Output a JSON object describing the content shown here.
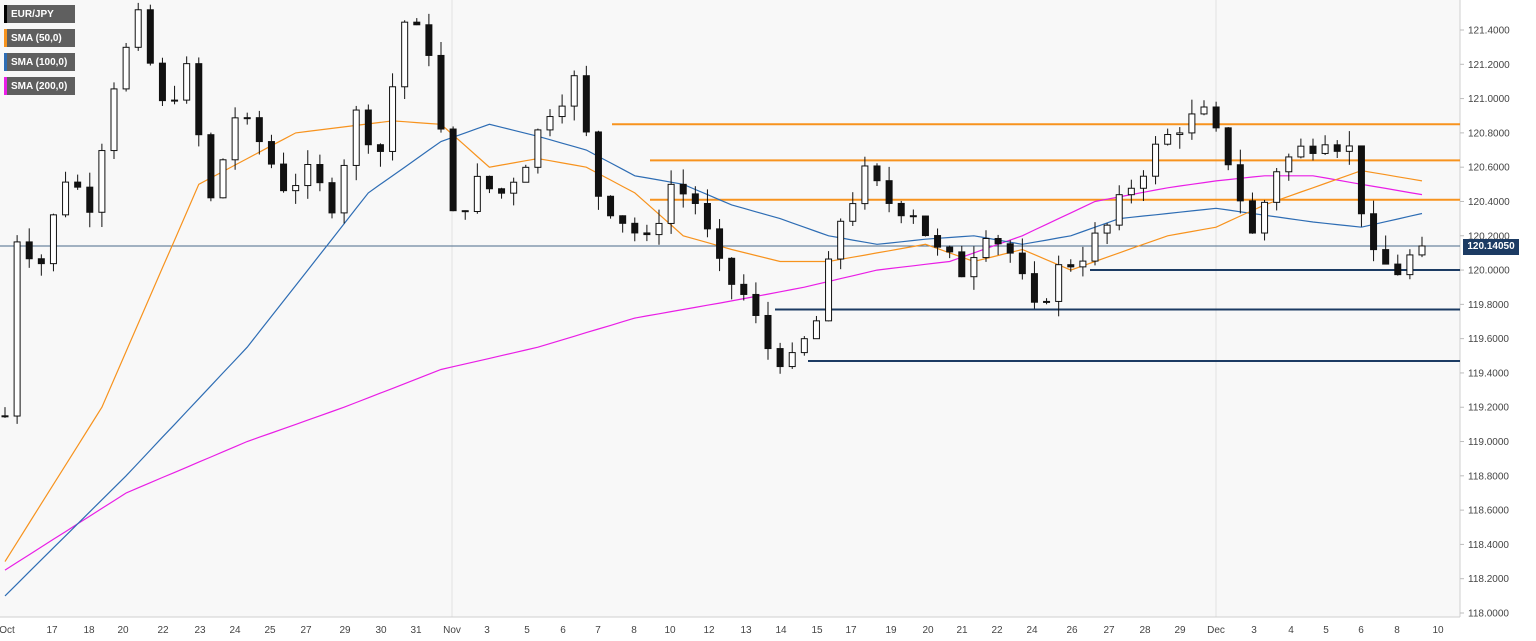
{
  "chart_data": {
    "type": "candlestick",
    "symbol": "EUR/JPY",
    "last_price": "120.14050",
    "ylim": [
      117.95,
      121.56
    ],
    "y_ticks": [
      "121.4000",
      "121.2000",
      "121.0000",
      "120.8000",
      "120.6000",
      "120.4000",
      "120.2000",
      "120.0000",
      "119.8000",
      "119.6000",
      "119.4000",
      "119.2000",
      "119.0000",
      "118.8000",
      "118.6000",
      "118.4000",
      "118.2000",
      "118.0000"
    ],
    "x_ticks": [
      "Oct",
      "17",
      "18",
      "20",
      "22",
      "23",
      "24",
      "25",
      "27",
      "29",
      "30",
      "31",
      "Nov",
      "3",
      "5",
      "6",
      "7",
      "8",
      "10",
      "12",
      "13",
      "14",
      "15",
      "17",
      "19",
      "20",
      "21",
      "22",
      "24",
      "26",
      "27",
      "28",
      "29",
      "Dec",
      "3",
      "4",
      "5",
      "6",
      "8",
      "10"
    ],
    "legend": [
      "EUR/JPY",
      "SMA (50,0)",
      "SMA (100,0)",
      "SMA (200,0)"
    ],
    "resistance_levels": [
      120.85,
      120.64,
      120.41
    ],
    "support_levels": [
      120.0,
      119.77,
      119.47
    ],
    "price_path": [
      [
        0,
        119.15
      ],
      [
        1,
        120.2
      ],
      [
        3,
        120.05
      ],
      [
        5,
        120.55
      ],
      [
        7,
        120.4
      ],
      [
        9,
        121.1
      ],
      [
        11,
        121.45
      ],
      [
        13,
        120.95
      ],
      [
        15,
        121.15
      ],
      [
        17,
        120.4
      ],
      [
        19,
        120.9
      ],
      [
        21,
        120.75
      ],
      [
        23,
        120.5
      ],
      [
        25,
        120.55
      ],
      [
        27,
        120.4
      ],
      [
        29,
        120.9
      ],
      [
        31,
        120.7
      ],
      [
        33,
        121.45
      ],
      [
        35,
        121.3
      ],
      [
        37,
        120.3
      ],
      [
        39,
        120.5
      ],
      [
        41,
        120.45
      ],
      [
        43,
        120.65
      ],
      [
        45,
        120.95
      ],
      [
        47,
        121.1
      ],
      [
        49,
        120.45
      ],
      [
        51,
        120.3
      ],
      [
        53,
        120.15
      ],
      [
        55,
        120.5
      ],
      [
        57,
        120.4
      ],
      [
        59,
        120.0
      ],
      [
        61,
        119.85
      ],
      [
        63,
        119.55
      ],
      [
        65,
        119.45
      ],
      [
        67,
        119.7
      ],
      [
        69,
        120.3
      ],
      [
        71,
        120.55
      ],
      [
        73,
        120.4
      ],
      [
        75,
        120.35
      ],
      [
        77,
        120.1
      ],
      [
        79,
        120.0
      ],
      [
        81,
        120.25
      ],
      [
        83,
        120.1
      ],
      [
        85,
        119.75
      ],
      [
        87,
        120.0
      ],
      [
        89,
        120.1
      ],
      [
        91,
        120.25
      ],
      [
        93,
        120.5
      ],
      [
        95,
        120.7
      ],
      [
        97,
        120.85
      ],
      [
        99,
        120.9
      ],
      [
        101,
        120.65
      ],
      [
        103,
        120.2
      ],
      [
        105,
        120.6
      ],
      [
        107,
        120.7
      ],
      [
        109,
        120.8
      ],
      [
        111,
        120.7
      ],
      [
        113,
        120.05
      ],
      [
        115,
        120.0
      ],
      [
        117,
        120.14
      ]
    ],
    "sma50": [
      [
        0,
        118.3
      ],
      [
        8,
        119.2
      ],
      [
        16,
        120.5
      ],
      [
        24,
        120.8
      ],
      [
        32,
        120.87
      ],
      [
        36,
        120.85
      ],
      [
        40,
        120.6
      ],
      [
        44,
        120.65
      ],
      [
        48,
        120.6
      ],
      [
        52,
        120.45
      ],
      [
        56,
        120.2
      ],
      [
        60,
        120.12
      ],
      [
        64,
        120.05
      ],
      [
        68,
        120.05
      ],
      [
        72,
        120.1
      ],
      [
        76,
        120.15
      ],
      [
        80,
        120.05
      ],
      [
        84,
        120.12
      ],
      [
        88,
        120.0
      ],
      [
        92,
        120.1
      ],
      [
        96,
        120.2
      ],
      [
        100,
        120.25
      ],
      [
        104,
        120.38
      ],
      [
        108,
        120.48
      ],
      [
        112,
        120.58
      ],
      [
        117,
        120.52
      ]
    ],
    "sma100": [
      [
        0,
        118.1
      ],
      [
        10,
        118.8
      ],
      [
        20,
        119.55
      ],
      [
        30,
        120.45
      ],
      [
        36,
        120.75
      ],
      [
        40,
        120.85
      ],
      [
        44,
        120.78
      ],
      [
        48,
        120.7
      ],
      [
        52,
        120.55
      ],
      [
        56,
        120.5
      ],
      [
        60,
        120.38
      ],
      [
        64,
        120.3
      ],
      [
        68,
        120.2
      ],
      [
        72,
        120.15
      ],
      [
        76,
        120.18
      ],
      [
        80,
        120.2
      ],
      [
        84,
        120.15
      ],
      [
        88,
        120.2
      ],
      [
        92,
        120.3
      ],
      [
        96,
        120.33
      ],
      [
        100,
        120.36
      ],
      [
        104,
        120.32
      ],
      [
        108,
        120.28
      ],
      [
        112,
        120.25
      ],
      [
        117,
        120.33
      ]
    ],
    "sma200": [
      [
        0,
        118.25
      ],
      [
        10,
        118.7
      ],
      [
        20,
        119.0
      ],
      [
        28,
        119.2
      ],
      [
        36,
        119.42
      ],
      [
        44,
        119.55
      ],
      [
        52,
        119.72
      ],
      [
        60,
        119.82
      ],
      [
        66,
        119.9
      ],
      [
        72,
        120.0
      ],
      [
        78,
        120.05
      ],
      [
        84,
        120.2
      ],
      [
        90,
        120.4
      ],
      [
        96,
        120.48
      ],
      [
        100,
        120.52
      ],
      [
        104,
        120.55
      ],
      [
        108,
        120.55
      ],
      [
        112,
        120.5
      ],
      [
        117,
        120.44
      ]
    ]
  }
}
